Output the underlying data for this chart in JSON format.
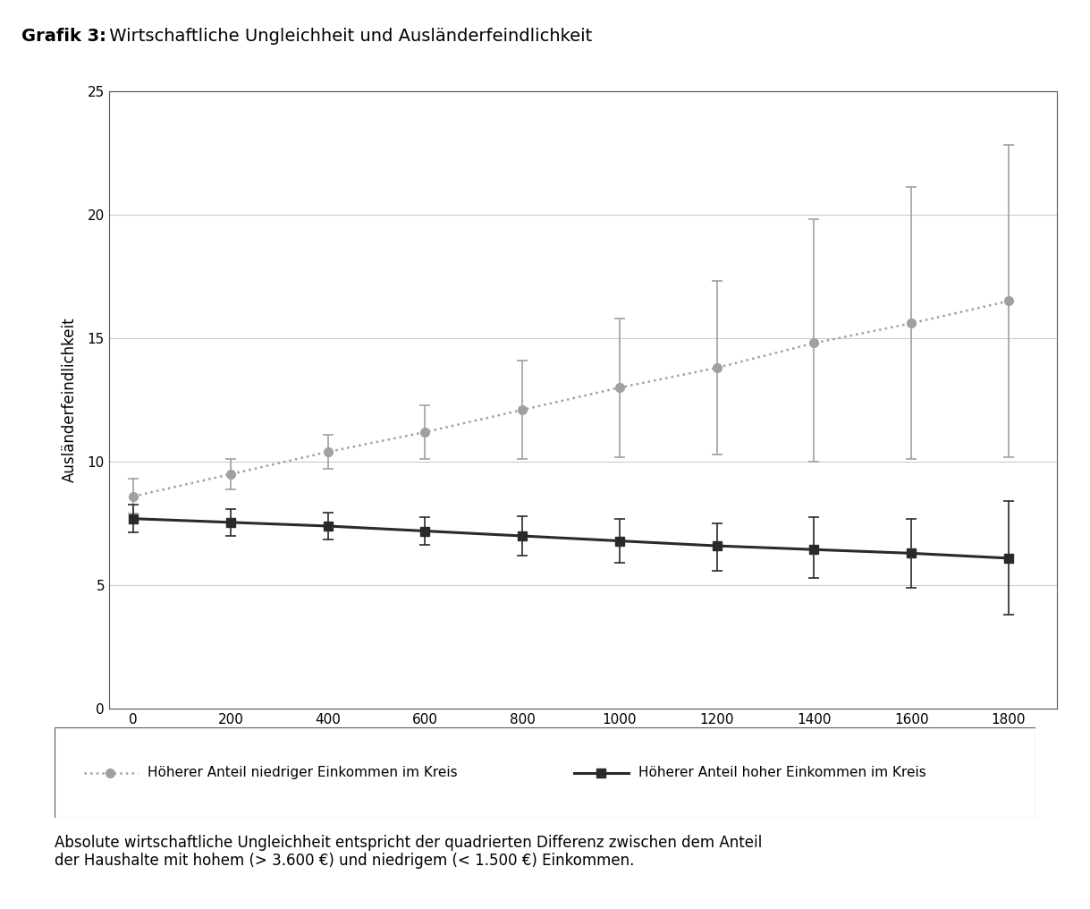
{
  "title_bold": "Grafik 3:",
  "title_normal": " Wirtschaftliche Ungleichheit und Ausländerfeindlichkeit",
  "xlabel": "Absolute wirtschaftliche Ungleichheit",
  "ylabel": "Ausländerfeindlichkeit",
  "footnote": "Absolute wirtschaftliche Ungleichheit entspricht der quadrierten Differenz zwischen dem Anteil\nder Haushalte mit hohem (> 3.600 €) und niedrigem (< 1.500 €) Einkommen.",
  "xlim": [
    -50,
    1900
  ],
  "ylim": [
    0,
    25
  ],
  "yticks": [
    0,
    5,
    10,
    15,
    20,
    25
  ],
  "xticks": [
    0,
    200,
    400,
    600,
    800,
    1000,
    1200,
    1400,
    1600,
    1800
  ],
  "series1": {
    "label": "Höherer Anteil niedriger Einkommen im Kreis",
    "color": "#a0a0a0",
    "linestyle": "dotted",
    "marker": "o",
    "x": [
      0,
      200,
      400,
      600,
      800,
      1000,
      1200,
      1400,
      1600,
      1800
    ],
    "y": [
      8.6,
      9.5,
      10.4,
      11.2,
      12.1,
      13.0,
      13.8,
      14.8,
      15.6,
      16.5
    ],
    "yerr_lower": [
      0.7,
      0.6,
      0.7,
      1.1,
      2.0,
      2.8,
      3.5,
      4.8,
      5.5,
      6.3
    ],
    "yerr_upper": [
      0.7,
      0.6,
      0.7,
      1.1,
      2.0,
      2.8,
      3.5,
      5.0,
      5.5,
      6.3
    ]
  },
  "series2": {
    "label": "Höherer Anteil hoher Einkommen im Kreis",
    "color": "#2a2a2a",
    "linestyle": "solid",
    "marker": "s",
    "x": [
      0,
      200,
      400,
      600,
      800,
      1000,
      1200,
      1400,
      1600,
      1800
    ],
    "y": [
      7.7,
      7.55,
      7.4,
      7.2,
      7.0,
      6.8,
      6.6,
      6.45,
      6.3,
      6.1
    ],
    "yerr_lower": [
      0.55,
      0.55,
      0.55,
      0.55,
      0.8,
      0.9,
      1.0,
      1.15,
      1.4,
      2.3
    ],
    "yerr_upper": [
      0.55,
      0.55,
      0.55,
      0.55,
      0.8,
      0.9,
      0.9,
      1.3,
      1.4,
      2.3
    ]
  },
  "legend1_label": "Höherer Anteil niedriger Einkommen im Kreis",
  "legend2_label": "Höherer Anteil hoher Einkommen im Kreis",
  "background_color": "#ffffff",
  "plot_bg_color": "#ffffff",
  "grid_color": "#cccccc",
  "title_fontsize": 14,
  "axis_fontsize": 12,
  "tick_fontsize": 11,
  "legend_fontsize": 11,
  "footnote_fontsize": 12
}
